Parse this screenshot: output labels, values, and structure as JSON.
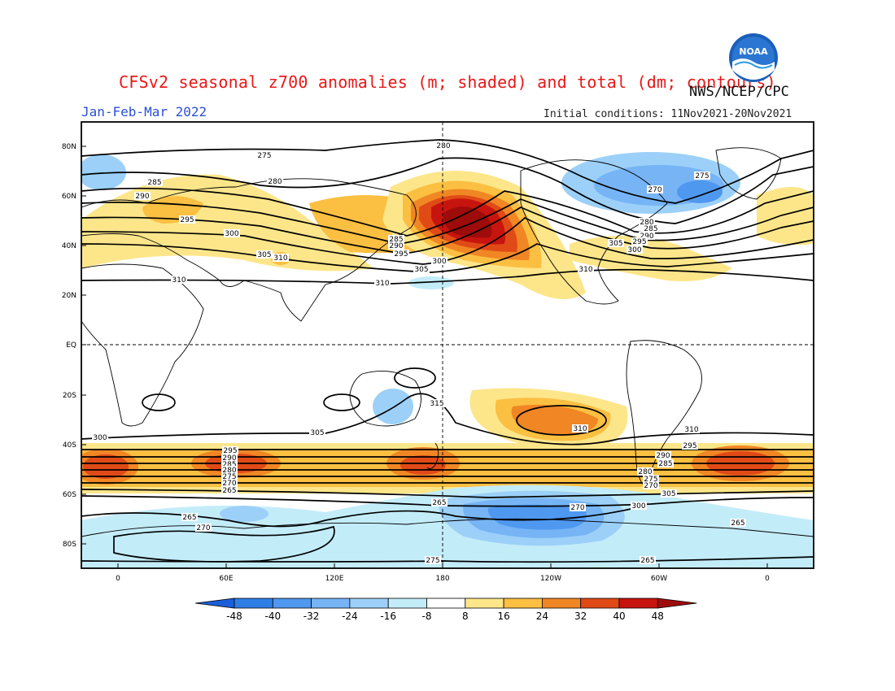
{
  "header": {
    "title": "CFSv2 seasonal z700 anomalies (m; shaded) and total (dm; contours)",
    "agency": "NWS/NCEP/CPC",
    "period": "Jan-Feb-Mar 2022",
    "initial_conditions": "Initial conditions: 11Nov2021-20Nov2021",
    "logo_text": "NOAA"
  },
  "map": {
    "lat_ticks": [
      "80N",
      "60N",
      "40N",
      "20N",
      "EQ",
      "20S",
      "40S",
      "60S",
      "80S"
    ],
    "lon_ticks": [
      "0",
      "60E",
      "120E",
      "180",
      "120W",
      "60W",
      "0"
    ],
    "projection": "cylindrical equidistant, centered on 180",
    "reference_lines": [
      "equator",
      "dateline"
    ]
  },
  "anomaly_regions": [
    {
      "name": "north-pacific-high",
      "lon": -170,
      "lat": 50,
      "value": 48
    },
    {
      "name": "east-asia-positive",
      "lon": 120,
      "lat": 45,
      "value": 24
    },
    {
      "name": "north-america-negative",
      "lon": -85,
      "lat": 58,
      "value": -32
    },
    {
      "name": "south-pacific-positive",
      "lon": -135,
      "lat": -33,
      "value": 32
    },
    {
      "name": "southern-ocean-negative",
      "lon": -125,
      "lat": -68,
      "value": -32
    },
    {
      "name": "south-atlantic-positive",
      "lon": -10,
      "lat": -50,
      "value": 40
    },
    {
      "name": "southern-indian-positive",
      "lon": 40,
      "lat": -50,
      "value": 32
    }
  ],
  "contour_labels": [
    "275",
    "285",
    "290",
    "295",
    "300",
    "280",
    "305",
    "310",
    "280",
    "305",
    "300",
    "285",
    "290",
    "295",
    "310",
    "270",
    "275",
    "280",
    "285",
    "290",
    "295",
    "300",
    "305",
    "310",
    "310",
    "315",
    "310",
    "310",
    "305",
    "300",
    "295",
    "290",
    "285",
    "280",
    "275",
    "270",
    "305",
    "300",
    "295",
    "290",
    "285",
    "280",
    "275",
    "270",
    "265",
    "265",
    "270",
    "270",
    "265",
    "265",
    "265",
    "275"
  ],
  "colorbar": {
    "labels": [
      "-48",
      "-40",
      "-32",
      "-24",
      "-16",
      "-8",
      "8",
      "16",
      "24",
      "32",
      "40",
      "48"
    ],
    "colors": [
      "#1a5fd9",
      "#2f7ee6",
      "#4f98ef",
      "#76b4f5",
      "#9cd0f8",
      "#c3ecf9",
      "#ffffff",
      "#fde68a",
      "#fbbf42",
      "#f08624",
      "#e04a17",
      "#c8140e",
      "#9e0b0b"
    ]
  }
}
